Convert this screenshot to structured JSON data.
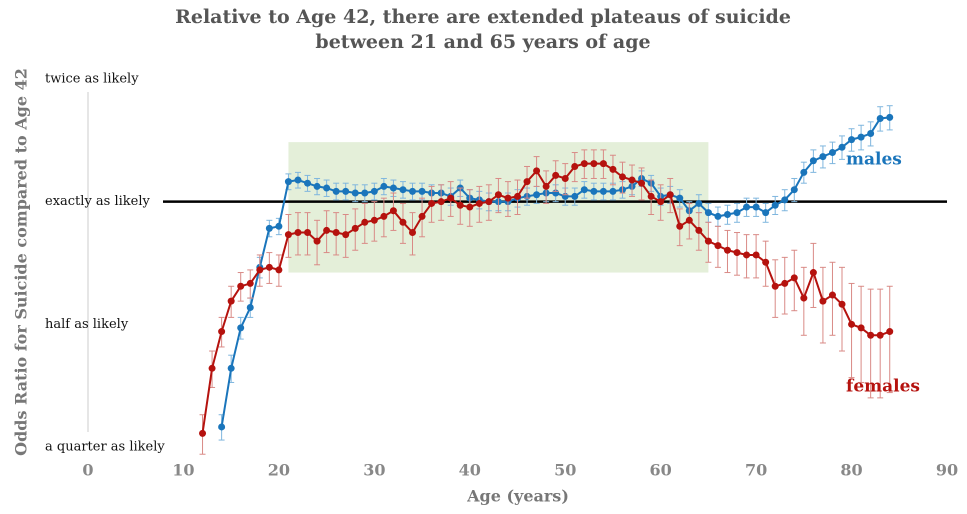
{
  "chart_data": {
    "type": "line",
    "title": [
      "Relative to Age 42, there are extended plateaus of suicide",
      "between 21 and 65 years of age"
    ],
    "x_label": "Age (years)",
    "y_label": "Odds Ratio for Suicide compared to Age 42",
    "log_scale": "y",
    "xlim": [
      0,
      90
    ],
    "xticks": [
      0,
      10,
      20,
      30,
      40,
      50,
      60,
      70,
      80,
      90
    ],
    "ylim": [
      0.25,
      2
    ],
    "yticks": [
      {
        "value": 2,
        "label": "twice as likely"
      },
      {
        "value": 1,
        "label": "exactly as likely"
      },
      {
        "value": 0.5,
        "label": "half as likely"
      },
      {
        "value": 0.25,
        "label": "a quarter as likely"
      }
    ],
    "reference_line": 1,
    "highlight": {
      "x": [
        21,
        65
      ],
      "y": [
        0.67,
        1.4
      ],
      "color": "#e4efd9"
    },
    "x": [
      12,
      13,
      14,
      15,
      16,
      17,
      18,
      19,
      20,
      21,
      22,
      23,
      24,
      25,
      26,
      27,
      28,
      29,
      30,
      31,
      32,
      33,
      34,
      35,
      36,
      37,
      38,
      39,
      40,
      41,
      42,
      43,
      44,
      45,
      46,
      47,
      48,
      49,
      50,
      51,
      52,
      53,
      54,
      55,
      56,
      57,
      58,
      59,
      60,
      61,
      62,
      63,
      64,
      65,
      66,
      67,
      68,
      69,
      70,
      71,
      72,
      73,
      74,
      75,
      76,
      77,
      78,
      79,
      80,
      81,
      82,
      83,
      84
    ],
    "series": [
      {
        "name": "males",
        "color": "#1a75bb",
        "error_color": "#7fb6de",
        "values": [
          null,
          null,
          0.28,
          0.39,
          0.49,
          0.55,
          0.69,
          0.86,
          0.87,
          1.12,
          1.13,
          1.11,
          1.09,
          1.08,
          1.06,
          1.06,
          1.05,
          1.05,
          1.06,
          1.09,
          1.08,
          1.07,
          1.06,
          1.06,
          1.05,
          1.05,
          1.03,
          1.08,
          1.02,
          1.01,
          1.0,
          1.0,
          1.0,
          1.02,
          1.03,
          1.04,
          1.05,
          1.05,
          1.03,
          1.03,
          1.07,
          1.06,
          1.06,
          1.06,
          1.07,
          1.09,
          1.14,
          1.11,
          1.03,
          1.04,
          1.02,
          0.95,
          0.99,
          0.94,
          0.92,
          0.93,
          0.94,
          0.97,
          0.97,
          0.94,
          0.98,
          1.01,
          1.07,
          1.18,
          1.26,
          1.29,
          1.32,
          1.36,
          1.42,
          1.44,
          1.47,
          1.6,
          1.61
        ],
        "errors": [
          null,
          null,
          0.02,
          0.03,
          0.03,
          0.03,
          0.04,
          0.04,
          0.04,
          0.05,
          0.05,
          0.05,
          0.05,
          0.05,
          0.05,
          0.05,
          0.05,
          0.05,
          0.05,
          0.05,
          0.05,
          0.05,
          0.05,
          0.05,
          0.05,
          0.05,
          0.05,
          0.05,
          0.05,
          0.05,
          0.05,
          0.05,
          0.05,
          0.05,
          0.05,
          0.05,
          0.05,
          0.05,
          0.05,
          0.05,
          0.05,
          0.05,
          0.05,
          0.05,
          0.05,
          0.05,
          0.05,
          0.05,
          0.05,
          0.05,
          0.05,
          0.05,
          0.05,
          0.05,
          0.05,
          0.05,
          0.05,
          0.05,
          0.05,
          0.05,
          0.05,
          0.06,
          0.07,
          0.07,
          0.08,
          0.08,
          0.08,
          0.09,
          0.09,
          0.1,
          0.1,
          0.11,
          0.11
        ]
      },
      {
        "name": "females",
        "color": "#b5120e",
        "error_color": "#d98a86",
        "values": [
          0.27,
          0.39,
          0.48,
          0.57,
          0.62,
          0.63,
          0.68,
          0.69,
          0.68,
          0.83,
          0.84,
          0.84,
          0.8,
          0.85,
          0.84,
          0.83,
          0.86,
          0.89,
          0.9,
          0.92,
          0.95,
          0.89,
          0.84,
          0.92,
          0.99,
          1.0,
          1.02,
          0.98,
          0.97,
          0.99,
          1.0,
          1.04,
          1.02,
          1.03,
          1.12,
          1.19,
          1.09,
          1.16,
          1.14,
          1.22,
          1.24,
          1.24,
          1.24,
          1.2,
          1.15,
          1.13,
          1.11,
          1.03,
          1.0,
          1.04,
          0.87,
          0.9,
          0.85,
          0.8,
          0.78,
          0.76,
          0.75,
          0.74,
          0.74,
          0.71,
          0.62,
          0.63,
          0.65,
          0.58,
          0.67,
          0.57,
          0.59,
          0.56,
          0.5,
          0.49,
          0.47,
          0.47,
          0.48
        ],
        "errors": [
          0.03,
          0.04,
          0.04,
          0.05,
          0.05,
          0.05,
          0.06,
          0.06,
          0.06,
          0.1,
          0.1,
          0.1,
          0.1,
          0.1,
          0.1,
          0.1,
          0.1,
          0.1,
          0.1,
          0.1,
          0.1,
          0.1,
          0.1,
          0.1,
          0.1,
          0.1,
          0.1,
          0.1,
          0.1,
          0.1,
          0.1,
          0.1,
          0.1,
          0.1,
          0.1,
          0.1,
          0.1,
          0.1,
          0.1,
          0.1,
          0.1,
          0.1,
          0.1,
          0.1,
          0.1,
          0.1,
          0.1,
          0.1,
          0.1,
          0.1,
          0.09,
          0.09,
          0.09,
          0.09,
          0.09,
          0.09,
          0.09,
          0.09,
          0.09,
          0.09,
          0.1,
          0.1,
          0.11,
          0.11,
          0.12,
          0.12,
          0.12,
          0.13,
          0.13,
          0.13,
          0.14,
          0.14,
          0.14
        ]
      }
    ]
  }
}
